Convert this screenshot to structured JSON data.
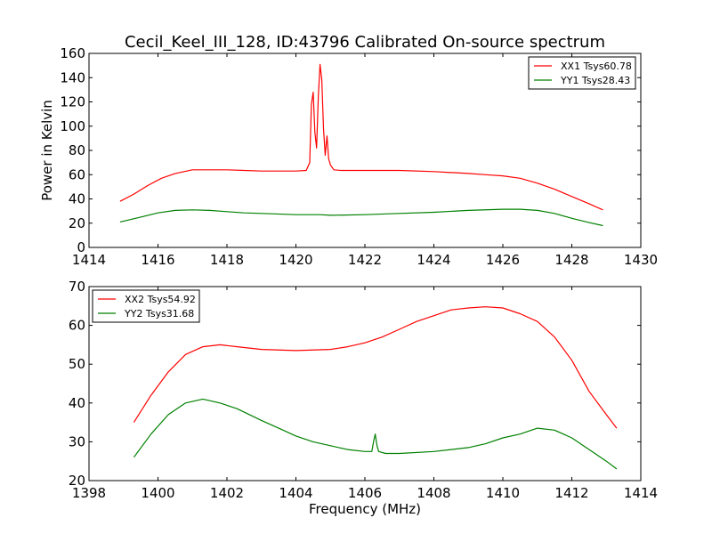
{
  "title": "Cecil_Keel_III_128, ID:43796 Calibrated On-source spectrum",
  "colors": {
    "red": "#ff0000",
    "green": "#008000",
    "frame": "#000000"
  },
  "chart_data": [
    {
      "type": "line",
      "title": "Cecil_Keel_III_128, ID:43796 Calibrated On-source spectrum",
      "xlabel": "",
      "ylabel": "Power in Kelvin",
      "xlim": [
        1414,
        1430
      ],
      "ylim": [
        0,
        160
      ],
      "xticks": [
        1414,
        1416,
        1418,
        1420,
        1422,
        1424,
        1426,
        1428,
        1430
      ],
      "yticks": [
        0,
        20,
        40,
        60,
        80,
        100,
        120,
        140,
        160
      ],
      "legend": "top-right",
      "grid": false,
      "series": [
        {
          "name": "XX1 Tsys60.78",
          "color": "#ff0000",
          "x": [
            1414.9,
            1415.3,
            1415.7,
            1416.1,
            1416.5,
            1417.0,
            1417.5,
            1418.0,
            1418.5,
            1419.0,
            1419.5,
            1420.0,
            1420.3,
            1420.4,
            1420.45,
            1420.5,
            1420.55,
            1420.6,
            1420.65,
            1420.7,
            1420.75,
            1420.8,
            1420.85,
            1420.9,
            1420.95,
            1421.0,
            1421.1,
            1421.3,
            1422.0,
            1423.0,
            1424.0,
            1425.0,
            1425.5,
            1426.0,
            1426.5,
            1427.0,
            1427.5,
            1428.0,
            1428.5,
            1428.9
          ],
          "y": [
            38,
            44,
            51,
            57,
            61,
            64,
            64,
            64,
            63.5,
            63,
            63,
            63,
            63.5,
            70,
            118,
            128,
            95,
            82,
            125,
            151,
            138,
            98,
            76,
            92,
            73,
            68,
            64,
            63.5,
            63.5,
            63.5,
            62.5,
            61,
            60,
            59,
            57,
            53,
            48,
            42,
            36,
            31
          ]
        },
        {
          "name": "YY1 Tsys28.43",
          "color": "#008000",
          "x": [
            1414.9,
            1415.5,
            1416.0,
            1416.5,
            1417.0,
            1417.5,
            1418.0,
            1418.5,
            1419.0,
            1420.0,
            1420.7,
            1421.0,
            1422.0,
            1423.0,
            1424.0,
            1425.0,
            1426.0,
            1426.5,
            1427.0,
            1427.5,
            1428.0,
            1428.5,
            1428.9
          ],
          "y": [
            21,
            25,
            28.5,
            30.5,
            31,
            30.5,
            29.5,
            28.5,
            28,
            27,
            27,
            26.5,
            27,
            28,
            29,
            30.5,
            31.5,
            31.5,
            30.5,
            28,
            24,
            20.5,
            18
          ]
        }
      ]
    },
    {
      "type": "line",
      "title": "",
      "xlabel": "Frequency (MHz)",
      "ylabel": "",
      "xlim": [
        1398,
        1414
      ],
      "ylim": [
        20,
        70
      ],
      "xticks": [
        1398,
        1400,
        1402,
        1404,
        1406,
        1408,
        1410,
        1412,
        1414
      ],
      "yticks": [
        20,
        30,
        40,
        50,
        60,
        70
      ],
      "legend": "top-left",
      "grid": false,
      "series": [
        {
          "name": "XX2 Tsys54.92",
          "color": "#ff0000",
          "x": [
            1399.3,
            1399.8,
            1400.3,
            1400.8,
            1401.3,
            1401.8,
            1402.3,
            1403.0,
            1404.0,
            1405.0,
            1405.5,
            1406.0,
            1406.5,
            1407.0,
            1407.5,
            1408.0,
            1408.5,
            1409.0,
            1409.5,
            1410.0,
            1410.5,
            1411.0,
            1411.5,
            1412.0,
            1412.5,
            1413.0,
            1413.3
          ],
          "y": [
            35,
            42,
            48,
            52.5,
            54.5,
            55,
            54.5,
            53.8,
            53.5,
            53.8,
            54.5,
            55.5,
            57,
            59,
            61,
            62.5,
            64,
            64.5,
            64.8,
            64.5,
            63,
            61,
            57,
            51,
            43,
            37,
            33.5
          ]
        },
        {
          "name": "YY2 Tsys31.68",
          "color": "#008000",
          "x": [
            1399.3,
            1399.8,
            1400.3,
            1400.8,
            1401.3,
            1401.8,
            1402.3,
            1403.0,
            1403.5,
            1404.0,
            1404.5,
            1405.0,
            1405.5,
            1406.0,
            1406.2,
            1406.25,
            1406.3,
            1406.35,
            1406.4,
            1406.6,
            1407.0,
            1408.0,
            1408.5,
            1409.0,
            1409.5,
            1410.0,
            1410.5,
            1411.0,
            1411.5,
            1412.0,
            1412.5,
            1413.0,
            1413.3
          ],
          "y": [
            26,
            32,
            37,
            40,
            41,
            40,
            38.5,
            35.5,
            33.5,
            31.5,
            30,
            29,
            28,
            27.5,
            27.5,
            30,
            32,
            29,
            27.5,
            27,
            27,
            27.5,
            28,
            28.5,
            29.5,
            31,
            32,
            33.5,
            33,
            31,
            28,
            25,
            23
          ]
        }
      ]
    }
  ]
}
